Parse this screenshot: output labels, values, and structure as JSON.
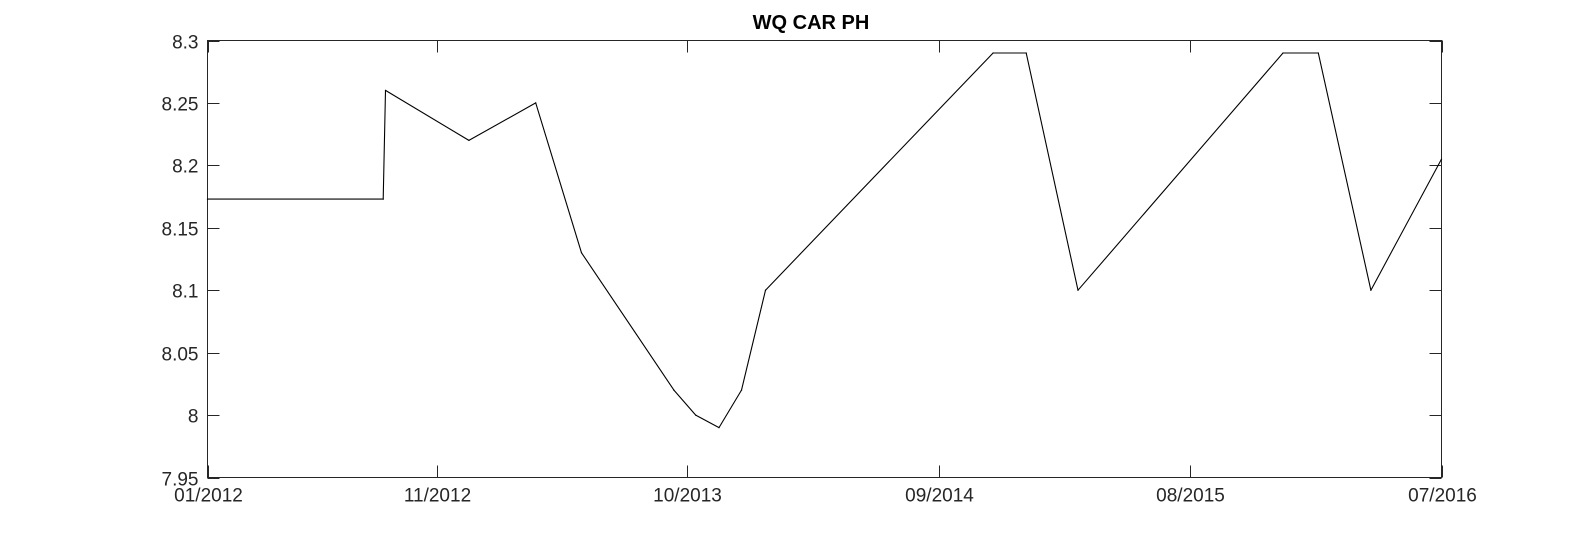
{
  "chart_data": {
    "type": "line",
    "title": "WQ CAR PH",
    "xlabel": "",
    "ylabel": "",
    "x_axis_type": "date",
    "xlim": [
      "2012-01-01",
      "2016-07-01"
    ],
    "ylim": [
      7.95,
      8.3
    ],
    "x_ticks": [
      {
        "date": "2012-01-01",
        "label": "01/2012"
      },
      {
        "date": "2012-11-01",
        "label": "11/2012"
      },
      {
        "date": "2013-10-01",
        "label": "10/2013"
      },
      {
        "date": "2014-09-01",
        "label": "09/2014"
      },
      {
        "date": "2015-08-01",
        "label": "08/2015"
      },
      {
        "date": "2016-07-01",
        "label": "07/2016"
      }
    ],
    "y_ticks": [
      {
        "value": 7.95,
        "label": "7.95"
      },
      {
        "value": 8.0,
        "label": "8"
      },
      {
        "value": 8.05,
        "label": "8.05"
      },
      {
        "value": 8.1,
        "label": "8.1"
      },
      {
        "value": 8.15,
        "label": "8.15"
      },
      {
        "value": 8.2,
        "label": "8.2"
      },
      {
        "value": 8.25,
        "label": "8.25"
      },
      {
        "value": 8.3,
        "label": "8.3"
      }
    ],
    "grid": false,
    "legend": "none",
    "series": [
      {
        "color": "#000000",
        "points": [
          {
            "x": "2012-01-01",
            "y": 8.173
          },
          {
            "x": "2012-08-22",
            "y": 8.173
          },
          {
            "x": "2012-08-25",
            "y": 8.26
          },
          {
            "x": "2012-12-14",
            "y": 8.22
          },
          {
            "x": "2013-03-13",
            "y": 8.25
          },
          {
            "x": "2013-05-13",
            "y": 8.13
          },
          {
            "x": "2013-09-13",
            "y": 8.02
          },
          {
            "x": "2013-10-12",
            "y": 8.0
          },
          {
            "x": "2013-11-12",
            "y": 7.99
          },
          {
            "x": "2013-12-12",
            "y": 8.02
          },
          {
            "x": "2014-01-13",
            "y": 8.1
          },
          {
            "x": "2014-11-12",
            "y": 8.29
          },
          {
            "x": "2014-12-26",
            "y": 8.29
          },
          {
            "x": "2015-03-05",
            "y": 8.1
          },
          {
            "x": "2015-12-03",
            "y": 8.29
          },
          {
            "x": "2016-01-19",
            "y": 8.29
          },
          {
            "x": "2016-03-29",
            "y": 8.1
          },
          {
            "x": "2016-07-01",
            "y": 8.205
          }
        ]
      }
    ]
  }
}
